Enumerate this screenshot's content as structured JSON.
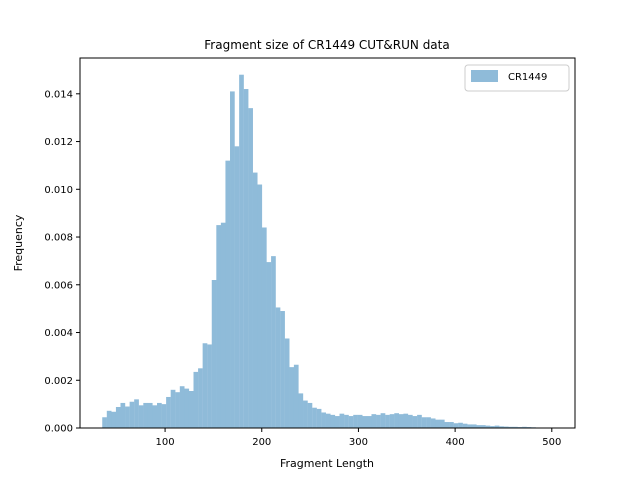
{
  "chart_data": {
    "type": "bar",
    "title": "Fragment size of CR1449 CUT&RUN data",
    "xlabel": "Fragment Length",
    "ylabel": "Frequency",
    "xlim": [
      12,
      524
    ],
    "ylim": [
      0,
      0.0155
    ],
    "xticks": [
      100,
      200,
      300,
      400,
      500
    ],
    "yticks": [
      0.0,
      0.002,
      0.004,
      0.006,
      0.008,
      0.01,
      0.012,
      0.014
    ],
    "ytick_labels": [
      "0.000",
      "0.002",
      "0.004",
      "0.006",
      "0.008",
      "0.010",
      "0.012",
      "0.014"
    ],
    "legend": {
      "position": "top-right",
      "entries": [
        "CR1449"
      ]
    },
    "grid": false,
    "series": [
      {
        "name": "CR1449",
        "color": "#8fbbd9",
        "bin_width": 4.72,
        "bins": [
          [
            35,
            0.00045
          ],
          [
            39.72,
            0.00072
          ],
          [
            44.44,
            0.00068
          ],
          [
            49.16,
            0.00088
          ],
          [
            53.88,
            0.00105
          ],
          [
            58.6,
            0.0009
          ],
          [
            63.32,
            0.0011
          ],
          [
            68.04,
            0.0012
          ],
          [
            72.76,
            0.00095
          ],
          [
            77.48,
            0.00105
          ],
          [
            82.2,
            0.00105
          ],
          [
            86.92,
            0.00095
          ],
          [
            91.64,
            0.00105
          ],
          [
            96.36,
            0.001
          ],
          [
            101.08,
            0.0013
          ],
          [
            105.8,
            0.0016
          ],
          [
            110.52,
            0.0015
          ],
          [
            115.24,
            0.00175
          ],
          [
            119.96,
            0.00165
          ],
          [
            124.68,
            0.00155
          ],
          [
            129.4,
            0.00235
          ],
          [
            134.12,
            0.0025
          ],
          [
            138.84,
            0.00355
          ],
          [
            143.56,
            0.0035
          ],
          [
            148.28,
            0.0062
          ],
          [
            153,
            0.0085
          ],
          [
            157.72,
            0.0086
          ],
          [
            162.44,
            0.0112
          ],
          [
            167.16,
            0.0141
          ],
          [
            171.88,
            0.0118
          ],
          [
            176.6,
            0.0148
          ],
          [
            181.32,
            0.0142
          ],
          [
            186.04,
            0.0134
          ],
          [
            190.76,
            0.0107
          ],
          [
            195.48,
            0.0102
          ],
          [
            200.2,
            0.0084
          ],
          [
            204.92,
            0.00695
          ],
          [
            209.64,
            0.0072
          ],
          [
            214.36,
            0.00505
          ],
          [
            219.08,
            0.0049
          ],
          [
            223.8,
            0.00375
          ],
          [
            228.52,
            0.00255
          ],
          [
            233.24,
            0.00265
          ],
          [
            237.96,
            0.00145
          ],
          [
            242.68,
            0.00115
          ],
          [
            247.4,
            0.00105
          ],
          [
            252.12,
            0.00085
          ],
          [
            256.84,
            0.0008
          ],
          [
            261.56,
            0.00065
          ],
          [
            266.28,
            0.0006
          ],
          [
            271,
            0.00055
          ],
          [
            275.72,
            0.0005
          ],
          [
            280.44,
            0.0006
          ],
          [
            285.16,
            0.00055
          ],
          [
            289.88,
            0.0005
          ],
          [
            294.6,
            0.00055
          ],
          [
            299.32,
            0.00055
          ],
          [
            304.04,
            0.0005
          ],
          [
            308.76,
            0.0005
          ],
          [
            313.48,
            0.00058
          ],
          [
            318.2,
            0.00055
          ],
          [
            322.92,
            0.00062
          ],
          [
            327.64,
            0.00055
          ],
          [
            332.36,
            0.00058
          ],
          [
            337.08,
            0.00062
          ],
          [
            341.8,
            0.00058
          ],
          [
            346.52,
            0.0006
          ],
          [
            351.24,
            0.00055
          ],
          [
            355.96,
            0.0005
          ],
          [
            360.68,
            0.00055
          ],
          [
            365.4,
            0.00045
          ],
          [
            370.12,
            0.00045
          ],
          [
            374.84,
            0.0004
          ],
          [
            379.56,
            0.00035
          ],
          [
            384.28,
            0.00035
          ],
          [
            389,
            0.00025
          ],
          [
            393.72,
            0.00025
          ],
          [
            398.44,
            0.0002
          ],
          [
            403.16,
            0.00022
          ],
          [
            407.88,
            0.00018
          ],
          [
            412.6,
            0.00015
          ],
          [
            417.32,
            0.00015
          ],
          [
            422.04,
            0.00012
          ],
          [
            426.76,
            0.00012
          ],
          [
            431.48,
            0.0001
          ],
          [
            436.2,
            8e-05
          ],
          [
            440.92,
            0.0001
          ],
          [
            445.64,
            7e-05
          ],
          [
            450.36,
            6e-05
          ],
          [
            455.08,
            5e-05
          ],
          [
            459.8,
            5e-05
          ],
          [
            464.52,
            4e-05
          ],
          [
            469.24,
            5e-05
          ],
          [
            473.96,
            4e-05
          ],
          [
            478.68,
            3e-05
          ],
          [
            483.4,
            2e-05
          ],
          [
            488.12,
            2e-05
          ],
          [
            492.84,
            2e-05
          ],
          [
            497.56,
            2e-05
          ]
        ]
      }
    ]
  }
}
